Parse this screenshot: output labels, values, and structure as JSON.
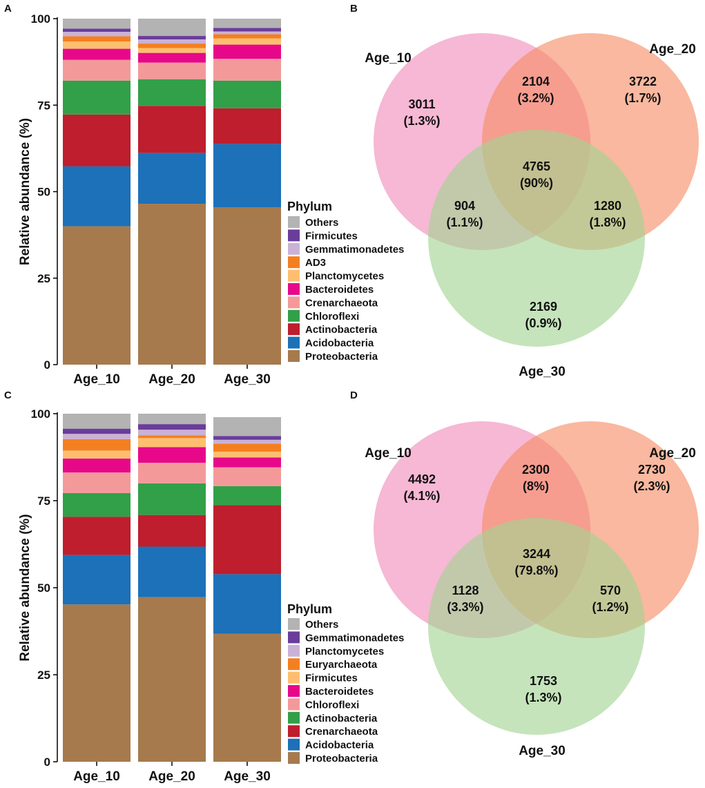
{
  "colors": {
    "Others": "#b3b3b3",
    "Firmicutes_A": "#6a3d9a",
    "Gemmatimonadetes_A": "#cab2d6",
    "AD3": "#f47f20",
    "Planctomycetes_A": "#fdbf6f",
    "Bacteroidetes": "#e7088a",
    "Crenarchaeota_A": "#f4999a",
    "Chloroflexi_A": "#31a048",
    "Actinobacteria_A": "#be1e2d",
    "Acidobacteria": "#1c71b8",
    "Proteobacteria": "#a67a4d",
    "venn_pink": "#f08cb9",
    "venn_orange": "#f58c64",
    "venn_green": "#a2d491"
  },
  "chart_data": [
    {
      "panel": "A",
      "type": "bar",
      "stacked": true,
      "title": "",
      "xlabel": "",
      "ylabel": "Relative abundance (%)",
      "ylim": [
        0,
        100
      ],
      "yticks": [
        "0",
        "25",
        "50",
        "75",
        "100"
      ],
      "categories": [
        "Age_10",
        "Age_20",
        "Age_30"
      ],
      "legend_title": "Phylum",
      "series": [
        {
          "name": "Proteobacteria",
          "color": "Proteobacteria",
          "values": [
            40.0,
            46.5,
            45.5
          ]
        },
        {
          "name": "Acidobacteria",
          "color": "Acidobacteria",
          "values": [
            17.3,
            14.7,
            18.3
          ]
        },
        {
          "name": "Actinobacteria",
          "color": "Actinobacteria_A",
          "values": [
            15.0,
            13.6,
            10.3
          ]
        },
        {
          "name": "Chloroflexi",
          "color": "Chloroflexi_A",
          "values": [
            9.8,
            7.7,
            8.0
          ]
        },
        {
          "name": "Crenarchaeota",
          "color": "Crenarchaeota_A",
          "values": [
            6.0,
            4.8,
            6.3
          ]
        },
        {
          "name": "Bacteroidetes",
          "color": "Bacteroidetes",
          "values": [
            3.2,
            2.8,
            4.1
          ]
        },
        {
          "name": "Planctomycetes",
          "color": "Planctomycetes_A",
          "values": [
            2.1,
            1.4,
            1.8
          ]
        },
        {
          "name": "AD3",
          "color": "AD3",
          "values": [
            1.5,
            1.3,
            1.2
          ]
        },
        {
          "name": "Gemmatimonadetes",
          "color": "Gemmatimonadetes_A",
          "values": [
            1.3,
            1.2,
            0.8
          ]
        },
        {
          "name": "Firmicutes",
          "color": "Firmicutes_A",
          "values": [
            0.9,
            1.0,
            1.0
          ]
        },
        {
          "name": "Others",
          "color": "Others",
          "values": [
            2.9,
            5.0,
            2.7
          ]
        }
      ]
    },
    {
      "panel": "B",
      "type": "venn",
      "sets": [
        "Age_10",
        "Age_20",
        "Age_30"
      ],
      "regions": {
        "only_10": {
          "count": "3011",
          "pct": "(1.3%)"
        },
        "only_20": {
          "count": "3722",
          "pct": "(1.7%)"
        },
        "only_30": {
          "count": "2169",
          "pct": "(0.9%)"
        },
        "ab": {
          "count": "2104",
          "pct": "(3.2%)"
        },
        "ac": {
          "count": "904",
          "pct": "(1.1%)"
        },
        "bc": {
          "count": "1280",
          "pct": "(1.8%)"
        },
        "abc": {
          "count": "4765",
          "pct": "(90%)"
        }
      }
    },
    {
      "panel": "C",
      "type": "bar",
      "stacked": true,
      "title": "",
      "xlabel": "",
      "ylabel": "Relative abundance (%)",
      "ylim": [
        0,
        100
      ],
      "yticks": [
        "0",
        "25",
        "50",
        "75",
        "100"
      ],
      "categories": [
        "Age_10",
        "Age_20",
        "Age_30"
      ],
      "legend_title": "Phylum",
      "series": [
        {
          "name": "Proteobacteria",
          "color": "Proteobacteria",
          "values": [
            45.2,
            47.3,
            36.8
          ]
        },
        {
          "name": "Acidobacteria",
          "color": "Acidobacteria",
          "values": [
            14.2,
            14.5,
            17.1
          ]
        },
        {
          "name": "Crenarchaeota",
          "color": "Actinobacteria_A",
          "values": [
            11.0,
            9.1,
            19.8
          ]
        },
        {
          "name": "Actinobacteria",
          "color": "Chloroflexi_A",
          "values": [
            6.8,
            9.1,
            5.5
          ]
        },
        {
          "name": "Chloroflexi",
          "color": "Crenarchaeota_A",
          "values": [
            5.9,
            5.9,
            5.4
          ]
        },
        {
          "name": "Bacteroidetes",
          "color": "Bacteroidetes",
          "values": [
            4.0,
            4.5,
            2.8
          ]
        },
        {
          "name": "Firmicutes",
          "color": "Planctomycetes_A",
          "values": [
            2.3,
            2.6,
            1.7
          ]
        },
        {
          "name": "Euryarchaeotа",
          "color": "AD3",
          "values": [
            3.3,
            0.8,
            2.3
          ]
        },
        {
          "name": "Planctomycetes",
          "color": "Gemmatimonadetes_A",
          "values": [
            1.5,
            1.6,
            1.1
          ]
        },
        {
          "name": "Gemmatimonadetes",
          "color": "Firmicutes_A",
          "values": [
            1.5,
            1.6,
            1.1
          ]
        },
        {
          "name": "Others",
          "color": "Others",
          "values": [
            4.3,
            3.0,
            5.4
          ]
        }
      ]
    },
    {
      "panel": "D",
      "type": "venn",
      "sets": [
        "Age_10",
        "Age_20",
        "Age_30"
      ],
      "regions": {
        "only_10": {
          "count": "4492",
          "pct": "(4.1%)"
        },
        "only_20": {
          "count": "2730",
          "pct": "(2.3%)"
        },
        "only_30": {
          "count": "1753",
          "pct": "(1.3%)"
        },
        "ab": {
          "count": "2300",
          "pct": "(8%)"
        },
        "ac": {
          "count": "1128",
          "pct": "(3.3%)"
        },
        "bc": {
          "count": "570",
          "pct": "(1.2%)"
        },
        "abc": {
          "count": "3244",
          "pct": "(79.8%)"
        }
      }
    }
  ]
}
